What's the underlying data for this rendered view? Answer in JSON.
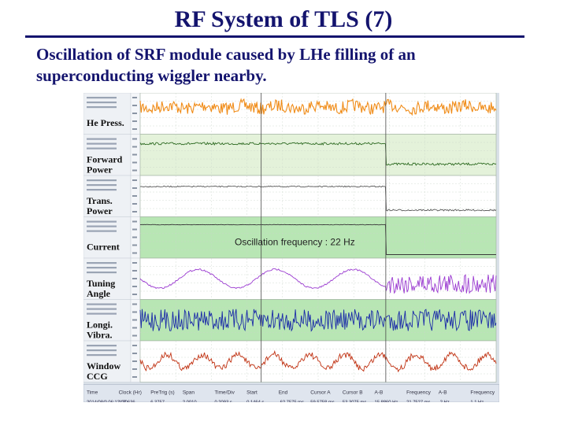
{
  "slide": {
    "title": "RF System of TLS (7)",
    "subtitle_line1": "Oscillation of SRF module caused by LHe filling of an",
    "subtitle_line2": "superconducting wiggler nearby."
  },
  "scope": {
    "annotation": "Oscillation frequency : 22 Hz",
    "panels": [
      {
        "label1": "He Press.",
        "label2": "",
        "color": "#f08c18",
        "bg": "#ffffff"
      },
      {
        "label1": "Forward",
        "label2": "Power",
        "color": "#2e6b22",
        "bg": "#e4f2da"
      },
      {
        "label1": "Trans.",
        "label2": "Power",
        "color": "#5a5a5a",
        "bg": "#ffffff"
      },
      {
        "label1": "Current",
        "label2": "",
        "color": "#3a3a3a",
        "bg": "#b8e6b4"
      },
      {
        "label1": "Tuning",
        "label2": "Angle",
        "color": "#9a3ad0",
        "bg": "#ffffff"
      },
      {
        "label1": "Longi.",
        "label2": "Vibra.",
        "color": "#1a2aa8",
        "bg": "#b8e6b4"
      },
      {
        "label1": "Window",
        "label2": "CCG",
        "color": "#c03010",
        "bg": "#ffffff"
      }
    ],
    "footer_headers": [
      "Time",
      "Clock (Hr)",
      "PreTrig (s)",
      "Span",
      "Time/Div",
      "Start",
      "End",
      "Cursor A",
      "Cursor B",
      "A-B",
      "Frequency",
      "A-B",
      "Frequency"
    ],
    "footer_values": [
      "2014/08/0 06:12 07",
      "1:20636",
      "6.3757",
      "2.0010",
      "0.2093 s",
      "0.1464 s",
      "-62.7575 ms",
      "59.5758 ms",
      "53.3075 ms",
      "15.8860 Hz",
      "21.7527 ms",
      "-2 Hz",
      "1.1 Hz"
    ]
  }
}
